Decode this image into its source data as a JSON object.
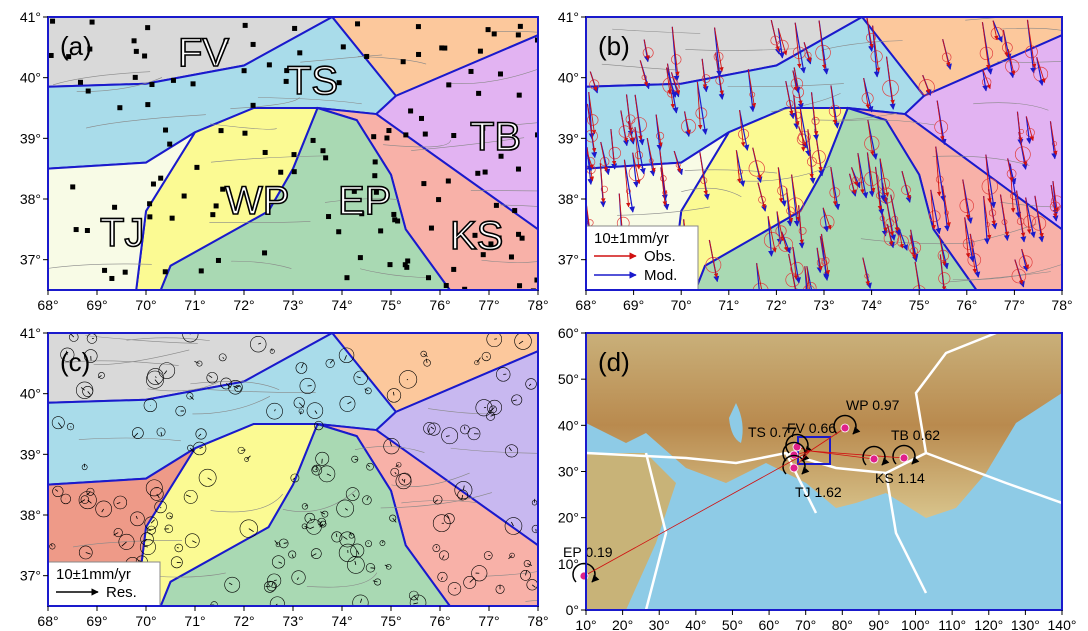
{
  "panels": [
    {
      "label": "(a)",
      "regions": [
        "FV",
        "TS",
        "TB",
        "WP",
        "EP",
        "TJ",
        "KS"
      ],
      "x_ticks": [
        "68°",
        "69°",
        "70°",
        "71°",
        "72°",
        "73°",
        "74°",
        "75°",
        "76°",
        "77°",
        "78°"
      ],
      "y_ticks": [
        "41°",
        "40°",
        "39°",
        "38°",
        "37°"
      ]
    },
    {
      "label": "(b)",
      "legend": {
        "scale": "10±1mm/yr",
        "items": [
          "Obs.",
          "Mod."
        ]
      },
      "x_ticks": [
        "68°",
        "69°",
        "70°",
        "71°",
        "72°",
        "73°",
        "74°",
        "75°",
        "76°",
        "77°",
        "78°"
      ],
      "y_ticks": [
        "41°",
        "40°",
        "39°",
        "38°",
        "37°"
      ]
    },
    {
      "label": "(c)",
      "legend": {
        "scale": "10±1mm/yr",
        "items": [
          "Res."
        ]
      },
      "x_ticks": [
        "68°",
        "69°",
        "70°",
        "71°",
        "72°",
        "73°",
        "74°",
        "75°",
        "76°",
        "77°",
        "78°"
      ],
      "y_ticks": [
        "41°",
        "40°",
        "39°",
        "38°",
        "37°"
      ]
    },
    {
      "label": "(d)",
      "poles": [
        "FV 0.66",
        "WP 0.97",
        "TS 0.77",
        "TB 0.62",
        "KS 1.14",
        "TJ 1.62",
        "EP 0.19"
      ],
      "x_ticks": [
        "10°",
        "20°",
        "30°",
        "40°",
        "50°",
        "60°",
        "70°",
        "80°",
        "90°",
        "100°",
        "110°",
        "120°",
        "130°",
        "140°"
      ],
      "y_ticks": [
        "60°",
        "50°",
        "40°",
        "30°",
        "20°",
        "10°",
        "0°"
      ]
    }
  ]
}
